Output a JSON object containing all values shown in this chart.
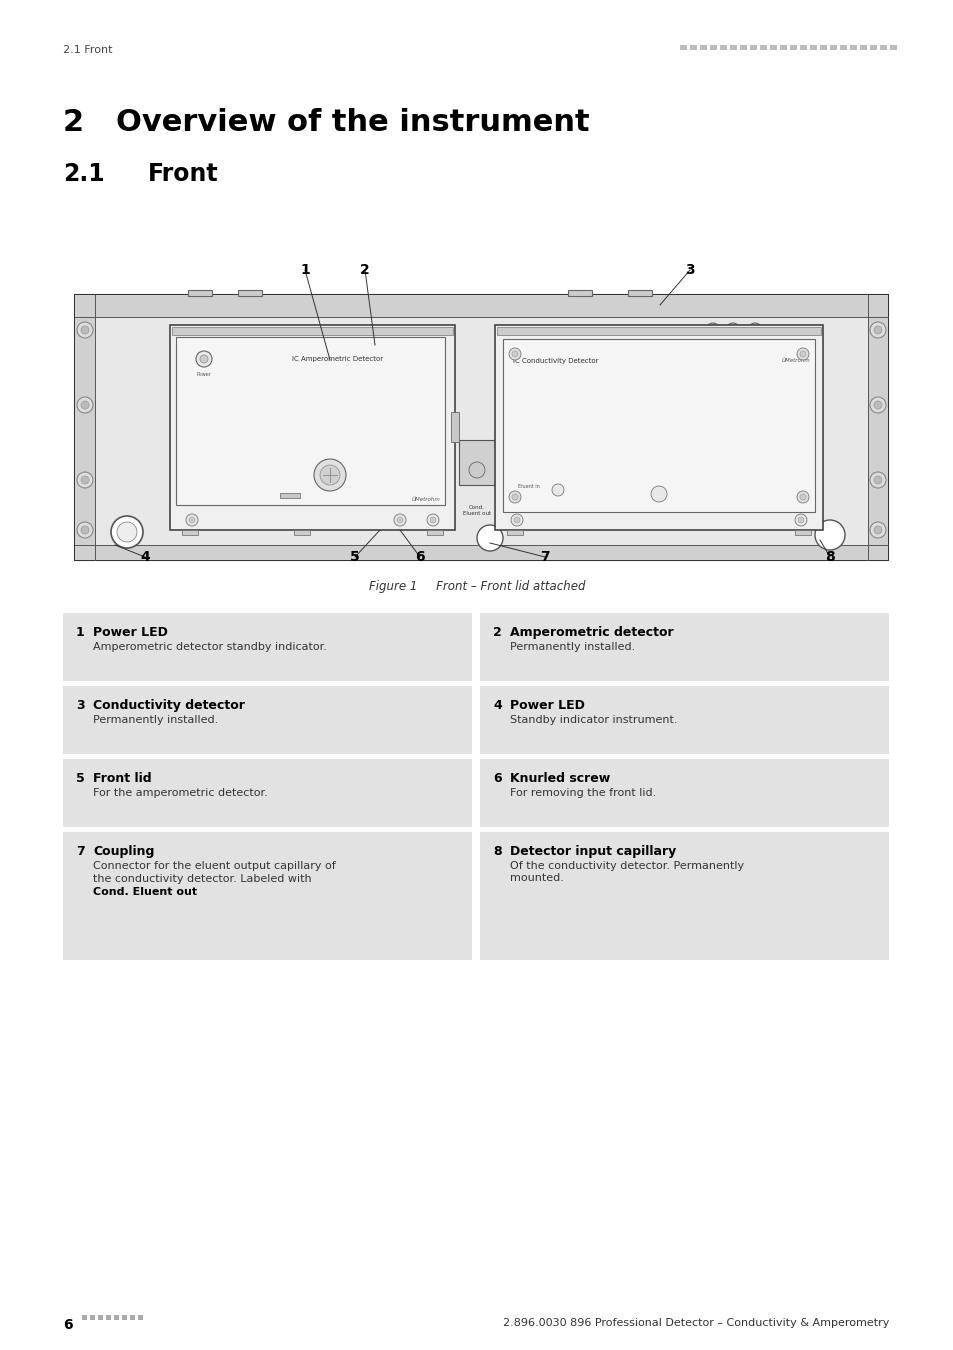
{
  "page_bg": "#ffffff",
  "header_left": "2.1 Front",
  "chapter_number": "2",
  "chapter_title": "Overview of the instrument",
  "section_number": "2.1",
  "section_title": "Front",
  "figure_caption": "Figure 1     Front – Front lid attached",
  "footer_left_num": "6",
  "footer_right": "2.896.0030 896 Professional Detector – Conductivity & Amperometry",
  "table_bg": "#e2e2e2",
  "table_items": [
    {
      "num": "1",
      "title": "Power LED",
      "desc": "Amperometric detector standby indicator."
    },
    {
      "num": "2",
      "title": "Amperometric detector",
      "desc": "Permanently installed."
    },
    {
      "num": "3",
      "title": "Conductivity detector",
      "desc": "Permanently installed."
    },
    {
      "num": "4",
      "title": "Power LED",
      "desc": "Standby indicator instrument."
    },
    {
      "num": "5",
      "title": "Front lid",
      "desc": "For the amperometric detector."
    },
    {
      "num": "6",
      "title": "Knurled screw",
      "desc": "For removing the front lid."
    },
    {
      "num": "7",
      "title": "Coupling",
      "desc_lines": [
        "Connector for the eluent output capillary of",
        "the conductivity detector. Labeled with"
      ],
      "desc_bold": "Cond. Eluent out",
      "desc_bold_suffix": "."
    },
    {
      "num": "8",
      "title": "Detector input capillary",
      "desc": "Of the conductivity detector. Permanently\nmounted."
    }
  ]
}
